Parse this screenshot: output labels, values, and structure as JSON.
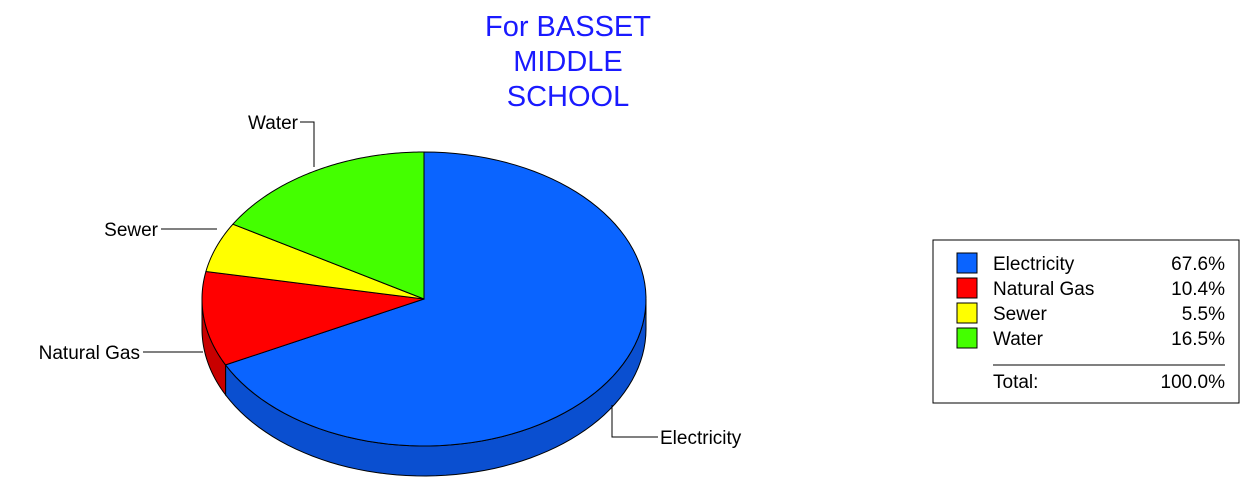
{
  "chart_data": {
    "type": "pie",
    "title_lines": [
      "For BASSET",
      "MIDDLE",
      "SCHOOL"
    ],
    "slices": [
      {
        "label": "Electricity",
        "value": 67.6,
        "display": "67.6%",
        "color": "#0a64ff",
        "side_color": "#0a4fd0"
      },
      {
        "label": "Natural Gas",
        "value": 10.4,
        "display": "10.4%",
        "color": "#ff0000",
        "side_color": "#c80000"
      },
      {
        "label": "Sewer",
        "value": 5.5,
        "display": "5.5%",
        "color": "#ffff00",
        "side_color": "#d0d000"
      },
      {
        "label": "Water",
        "value": 16.5,
        "display": "16.5%",
        "color": "#44ff00",
        "side_color": "#33cc00"
      }
    ],
    "total_label": "Total:",
    "total_value": "100.0%",
    "legend_position": "right"
  }
}
